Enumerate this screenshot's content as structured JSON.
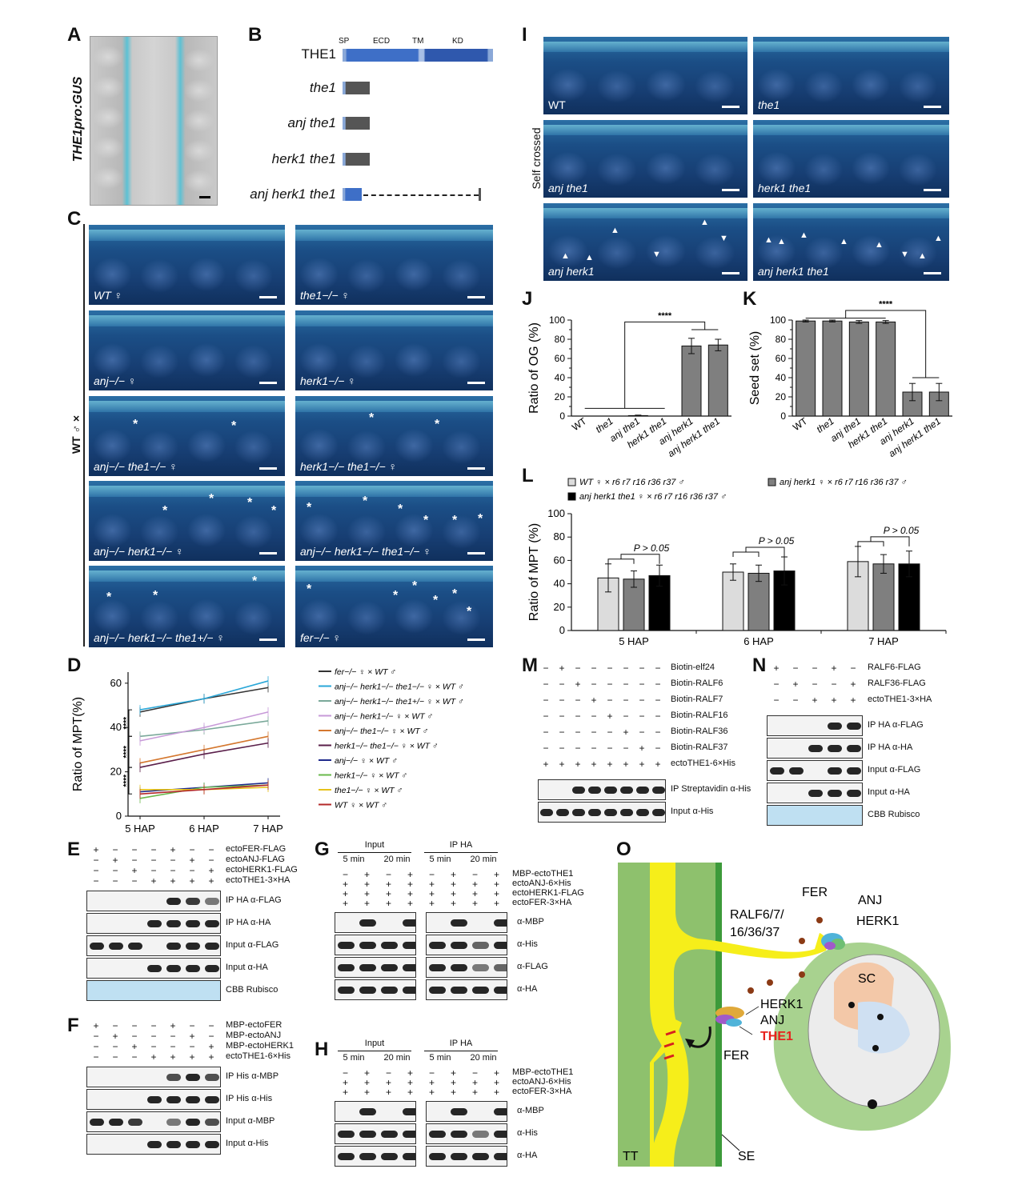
{
  "panels": {
    "A": "A",
    "B": "B",
    "C": "C",
    "D": "D",
    "E": "E",
    "F": "F",
    "G": "G",
    "H": "H",
    "I": "I",
    "J": "J",
    "K": "K",
    "L": "L",
    "M": "M",
    "N": "N",
    "O": "O"
  },
  "panelA": {
    "title": "THE1pro:GUS"
  },
  "panelB": {
    "domains": [
      "SP",
      "ECD",
      "TM",
      "KD"
    ],
    "constructs": [
      {
        "name": "THE1",
        "kind": "full"
      },
      {
        "name": "the1",
        "kind": "short"
      },
      {
        "name": "anj the1",
        "kind": "short"
      },
      {
        "name": "herk1 the1",
        "kind": "short"
      },
      {
        "name": "anj herk1 the1",
        "kind": "dashed"
      }
    ]
  },
  "panelC": {
    "side_label": "WT ♂ ×",
    "images": [
      {
        "label": "WT ♀"
      },
      {
        "label": "the1−/− ♀"
      },
      {
        "label": "anj−/− ♀"
      },
      {
        "label": "herk1−/− ♀"
      },
      {
        "label": "anj−/− the1−/− ♀"
      },
      {
        "label": "herk1−/− the1−/− ♀"
      },
      {
        "label": "anj−/− herk1−/− ♀"
      },
      {
        "label": "anj−/− herk1−/− the1−/− ♀"
      },
      {
        "label": "anj−/− herk1−/− the1+/− ♀"
      },
      {
        "label": "fer−/− ♀"
      }
    ]
  },
  "panelI": {
    "side_label": "Self crossed",
    "images": [
      {
        "label": "WT"
      },
      {
        "label": "the1"
      },
      {
        "label": "anj the1"
      },
      {
        "label": "herk1 the1"
      },
      {
        "label": "anj herk1"
      },
      {
        "label": "anj herk1 the1"
      }
    ]
  },
  "panelE": {
    "rows": [
      "ectoFER-FLAG",
      "ectoANJ-FLAG",
      "ectoHERK1-FLAG",
      "ectoTHE1-3×HA"
    ],
    "signs": [
      [
        "+",
        "−",
        "−",
        "−",
        "+",
        "−",
        "−"
      ],
      [
        "−",
        "+",
        "−",
        "−",
        "−",
        "+",
        "−"
      ],
      [
        "−",
        "−",
        "+",
        "−",
        "−",
        "−",
        "+"
      ],
      [
        "−",
        "−",
        "−",
        "+",
        "+",
        "+",
        "+"
      ]
    ],
    "blots": [
      "IP HA α-FLAG",
      "IP HA α-HA",
      "Input α-FLAG",
      "Input α-HA",
      "CBB Rubisco"
    ]
  },
  "panelF": {
    "rows": [
      "MBP-ectoFER",
      "MBP-ectoANJ",
      "MBP-ectoHERK1",
      "ectoTHE1-6×His"
    ],
    "signs": [
      [
        "+",
        "−",
        "−",
        "−",
        "+",
        "−",
        "−"
      ],
      [
        "−",
        "+",
        "−",
        "−",
        "−",
        "+",
        "−"
      ],
      [
        "−",
        "−",
        "+",
        "−",
        "−",
        "−",
        "+"
      ],
      [
        "−",
        "−",
        "−",
        "+",
        "+",
        "+",
        "+"
      ]
    ],
    "blots": [
      "IP His α-MBP",
      "IP His α-His",
      "Input α-MBP",
      "Input α-His"
    ]
  },
  "panelG": {
    "groups": [
      "Input",
      "IP HA"
    ],
    "times": [
      "5 min",
      "20 min",
      "5 min",
      "20 min"
    ],
    "rows": [
      "MBP-ectoTHE1",
      "ectoANJ-6×His",
      "ectoHERK1-FLAG",
      "ectoFER-3×HA"
    ],
    "signs": [
      [
        "−",
        "+",
        "−",
        "+",
        "−",
        "+",
        "−",
        "+"
      ],
      [
        "+",
        "+",
        "+",
        "+",
        "+",
        "+",
        "+",
        "+"
      ],
      [
        "+",
        "+",
        "+",
        "+",
        "+",
        "+",
        "+",
        "+"
      ],
      [
        "+",
        "+",
        "+",
        "+",
        "+",
        "+",
        "+",
        "+"
      ]
    ],
    "blots": [
      "α-MBP",
      "α-His",
      "α-FLAG",
      "α-HA"
    ]
  },
  "panelH": {
    "groups": [
      "Input",
      "IP HA"
    ],
    "times": [
      "5 min",
      "20 min",
      "5 min",
      "20 min"
    ],
    "rows": [
      "MBP-ectoTHE1",
      "ectoANJ-6×His",
      "ectoFER-3×HA"
    ],
    "signs": [
      [
        "−",
        "+",
        "−",
        "+",
        "−",
        "+",
        "−",
        "+"
      ],
      [
        "+",
        "+",
        "+",
        "+",
        "+",
        "+",
        "+",
        "+"
      ],
      [
        "+",
        "+",
        "+",
        "+",
        "+",
        "+",
        "+",
        "+"
      ]
    ],
    "blots": [
      "α-MBP",
      "α-His",
      "α-HA"
    ]
  },
  "panelM": {
    "rows": [
      "Biotin-elf24",
      "Biotin-RALF6",
      "Biotin-RALF7",
      "Biotin-RALF16",
      "Biotin-RALF36",
      "Biotin-RALF37",
      "ectoTHE1-6×His"
    ],
    "signs": [
      [
        "−",
        "+",
        "−",
        "−",
        "−",
        "−",
        "−",
        "−"
      ],
      [
        "−",
        "−",
        "+",
        "−",
        "−",
        "−",
        "−",
        "−"
      ],
      [
        "−",
        "−",
        "−",
        "+",
        "−",
        "−",
        "−",
        "−"
      ],
      [
        "−",
        "−",
        "−",
        "−",
        "+",
        "−",
        "−",
        "−"
      ],
      [
        "−",
        "−",
        "−",
        "−",
        "−",
        "+",
        "−",
        "−"
      ],
      [
        "−",
        "−",
        "−",
        "−",
        "−",
        "−",
        "+",
        "−"
      ],
      [
        "+",
        "+",
        "+",
        "+",
        "+",
        "+",
        "+",
        "+"
      ]
    ],
    "blots": [
      "IP Streptavidin α-His",
      "Input α-His"
    ]
  },
  "panelN": {
    "rows": [
      "RALF6-FLAG",
      "RALF36-FLAG",
      "ectoTHE1-3×HA"
    ],
    "signs": [
      [
        "+",
        "−",
        "−",
        "+",
        "−"
      ],
      [
        "−",
        "+",
        "−",
        "−",
        "+"
      ],
      [
        "−",
        "−",
        "+",
        "+",
        "+"
      ]
    ],
    "blots": [
      "IP HA α-FLAG",
      "IP HA α-HA",
      "Input α-FLAG",
      "Input α-HA",
      "CBB Rubisco"
    ]
  },
  "panelO": {
    "labels": {
      "ralf": "RALF6/7/",
      "ralf2": "16/36/37",
      "fer_top": "FER",
      "anj_top": "ANJ",
      "herk_top": "HERK1",
      "sc": "SC",
      "herk_mid": "HERK1",
      "anj_mid": "ANJ",
      "the1": "THE1",
      "fer_mid": "FER",
      "tt": "TT",
      "se": "SE"
    },
    "colors": {
      "the1": "#e8211d",
      "pollen_tube": "#f6ee1a",
      "tissue": "#8ec16d"
    }
  },
  "chart_data": [
    {
      "id": "D",
      "type": "line",
      "ylabel": "Ratio of MPT(%)",
      "x": [
        "5 HAP",
        "6 HAP",
        "7 HAP"
      ],
      "ylim": [
        0,
        65
      ],
      "yticks": [
        0,
        20,
        40,
        60
      ],
      "significance": [
        "****",
        "****",
        "****"
      ],
      "series": [
        {
          "name": "fer−/− ♀ × WT ♂",
          "color": "#333333",
          "values": [
            47,
            53,
            58
          ]
        },
        {
          "name": "anj−/− herk1−/− the1−/− ♀ × WT ♂",
          "color": "#2aa7d8",
          "values": [
            48,
            53,
            61
          ]
        },
        {
          "name": "anj−/− herk1−/− the1+/− ♀ × WT ♂",
          "color": "#7aa99a",
          "values": [
            36,
            39,
            43
          ]
        },
        {
          "name": "anj−/− herk1−/− ♀ × WT ♂",
          "color": "#c79ad8",
          "values": [
            34,
            40,
            47
          ]
        },
        {
          "name": "anj−/− the1−/− ♀ × WT ♂",
          "color": "#d4772e",
          "values": [
            24,
            30,
            36
          ]
        },
        {
          "name": "herk1−/− the1−/− ♀ × WT ♂",
          "color": "#5a1f4a",
          "values": [
            22,
            28,
            33
          ]
        },
        {
          "name": "anj−/− ♀ × WT ♂",
          "color": "#1f2a8c",
          "values": [
            11,
            13,
            15
          ]
        },
        {
          "name": "herk1−/− ♀ × WT ♂",
          "color": "#69b84b",
          "values": [
            8,
            13,
            14
          ]
        },
        {
          "name": "the1−/− ♀ × WT ♂",
          "color": "#e6c21a",
          "values": [
            12,
            12,
            13
          ]
        },
        {
          "name": "WT ♀ × WT ♂",
          "color": "#b3282a",
          "values": [
            10,
            12,
            14
          ]
        }
      ]
    },
    {
      "id": "J",
      "type": "bar",
      "ylabel": "Ratio of OG (%)",
      "categories": [
        "WT",
        "the1",
        "anj the1",
        "herk1 the1",
        "anj herk1",
        "anj herk1 the1"
      ],
      "values": [
        0,
        0,
        0.5,
        0,
        73,
        74
      ],
      "errors": [
        0,
        0,
        0.5,
        0,
        8,
        6
      ],
      "ylim": [
        0,
        100
      ],
      "yticks": [
        0,
        10,
        20,
        30,
        40,
        50,
        60,
        70,
        80,
        90,
        100
      ],
      "significance": "****",
      "bar_color": "#7f7f7f"
    },
    {
      "id": "K",
      "type": "bar",
      "ylabel": "Seed set (%)",
      "categories": [
        "WT",
        "the1",
        "anj the1",
        "herk1 the1",
        "anj herk1",
        "anj herk1 the1"
      ],
      "values": [
        99,
        99,
        98,
        98,
        25,
        25
      ],
      "errors": [
        1,
        1,
        1.5,
        1.5,
        9,
        9
      ],
      "ylim": [
        0,
        100
      ],
      "yticks": [
        0,
        10,
        20,
        30,
        40,
        50,
        60,
        70,
        80,
        90,
        100
      ],
      "significance": "****",
      "bar_color": "#7f7f7f"
    },
    {
      "id": "L",
      "type": "bar",
      "ylabel": "Ratio of MPT (%)",
      "categories": [
        "5 HAP",
        "6 HAP",
        "7 HAP"
      ],
      "series": [
        {
          "name": "WT ♀ × r6 r7 r16 r36 r37 ♂",
          "color": "#dcdcdc",
          "values": [
            45,
            50,
            59
          ],
          "errors": [
            12,
            7,
            13
          ]
        },
        {
          "name": "anj herk1 ♀ × r6 r7 r16 r36 r37 ♂",
          "color": "#7f7f7f",
          "values": [
            44,
            49,
            57
          ],
          "errors": [
            7,
            7,
            8
          ]
        },
        {
          "name": "anj herk1 the1 ♀ × r6 r7 r16 r36 r37 ♂",
          "color": "#000000",
          "values": [
            47,
            51,
            57
          ],
          "errors": [
            9,
            12,
            11
          ]
        }
      ],
      "ylim": [
        0,
        100
      ],
      "yticks": [
        0,
        20,
        40,
        60,
        80,
        100
      ],
      "annotations": [
        "P > 0.05",
        "P > 0.05",
        "P > 0.05"
      ]
    }
  ]
}
